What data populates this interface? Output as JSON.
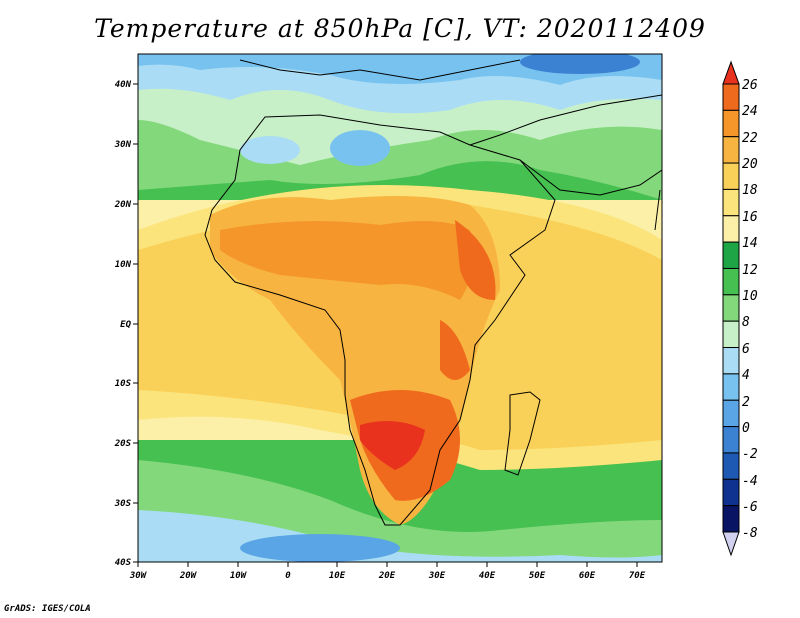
{
  "title": "Temperature at 850hPa [C], VT: 2020112409",
  "credit": "GrADS: IGES/COLA",
  "map": {
    "lon_range": [
      -30,
      75
    ],
    "lat_range": [
      -40,
      45
    ],
    "lat_labels": [
      "40N",
      "30N",
      "20N",
      "10N",
      "EQ",
      "10S",
      "20S",
      "30S",
      "40S"
    ],
    "lon_labels": [
      "30W",
      "20W",
      "10W",
      "0",
      "10E",
      "20E",
      "30E",
      "40E",
      "50E",
      "60E",
      "70E"
    ]
  },
  "colorbar": {
    "unit": "C",
    "levels": [
      "26",
      "24",
      "22",
      "20",
      "18",
      "16",
      "14",
      "12",
      "10",
      "8",
      "6",
      "4",
      "2",
      "0",
      "-2",
      "-4",
      "-6",
      "-8"
    ],
    "colors": [
      "#e8321e",
      "#f06a1e",
      "#f5962a",
      "#f8b440",
      "#fad158",
      "#fbe47c",
      "#fcf0a8",
      "#1ea646",
      "#46c050",
      "#82d87a",
      "#c8f0c8",
      "#aaddf5",
      "#78c2f0",
      "#5aa5e6",
      "#3c82d2",
      "#1e5ab4",
      "#0f3291",
      "#0a1464",
      "#d2d2f0"
    ]
  },
  "colors": {
    "cold": "#5aa5e6",
    "cool": "#c8f0c8",
    "mild": "#46c050",
    "warm": "#f8b440",
    "hot": "#f06a1e",
    "hottest": "#e8321e"
  }
}
